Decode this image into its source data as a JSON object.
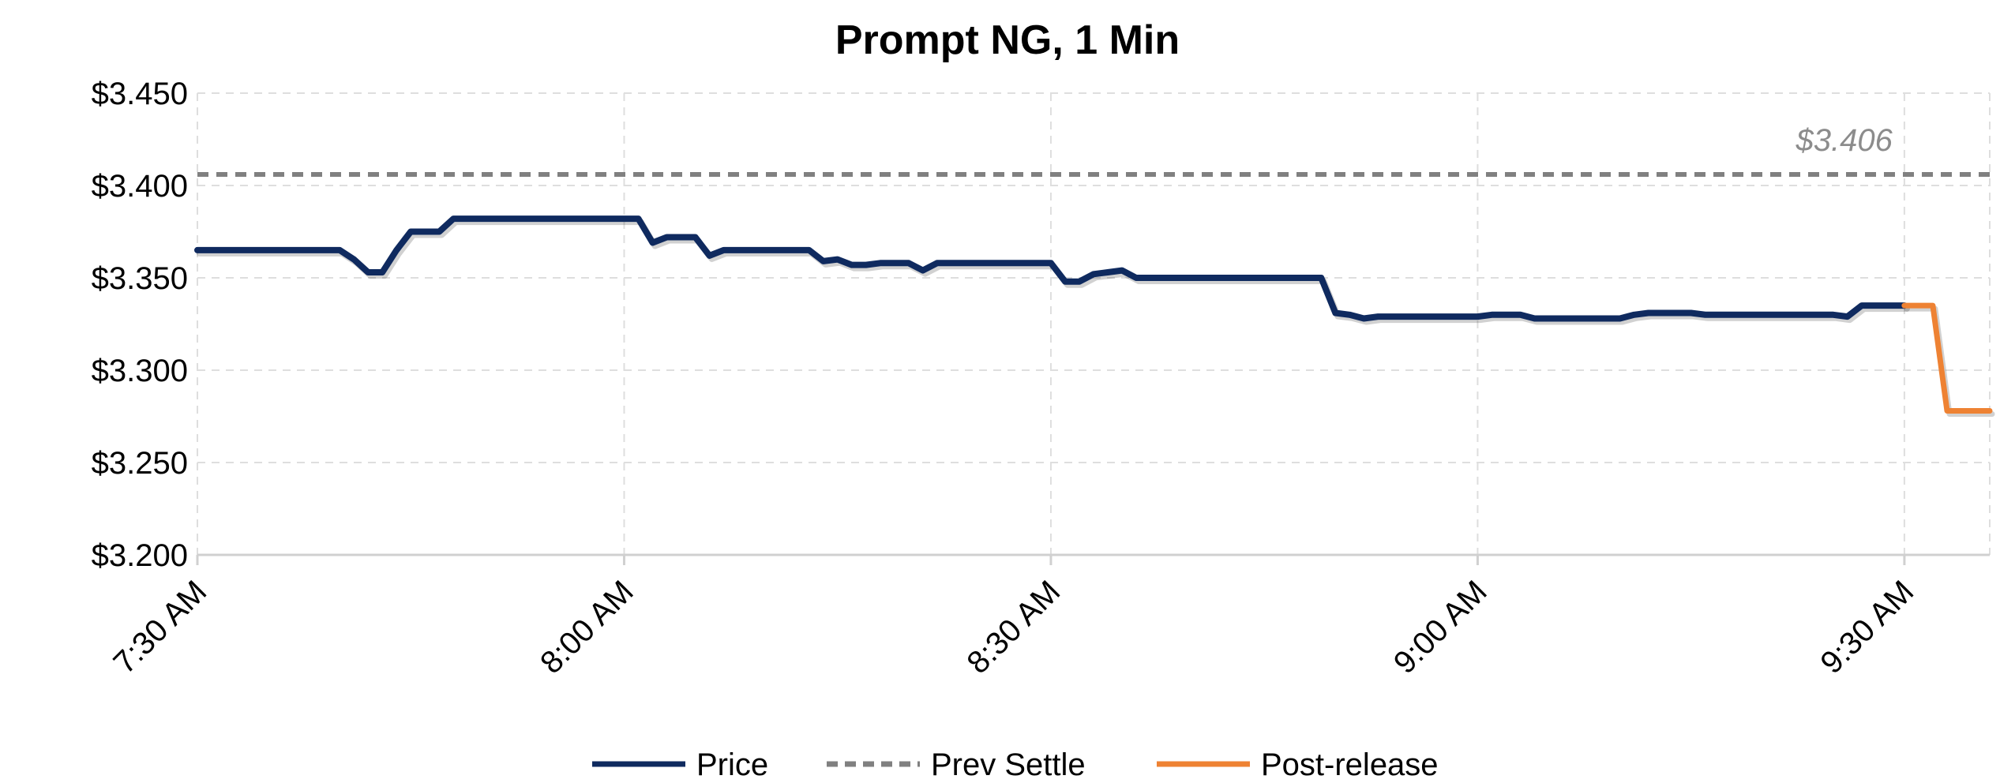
{
  "chart_data": {
    "type": "line",
    "title": "Prompt NG, 1 Min",
    "xlabel": "",
    "ylabel": "",
    "x_tick_labels": [
      "7:30 AM",
      "8:00 AM",
      "8:30 AM",
      "9:00 AM",
      "9:30 AM"
    ],
    "x_tick_minutes": [
      0,
      30,
      60,
      90,
      120
    ],
    "x_range_minutes": [
      0,
      126
    ],
    "y_tick_labels": [
      "$3.450",
      "$3.400",
      "$3.350",
      "$3.300",
      "$3.250",
      "$3.200"
    ],
    "y_tick_values": [
      3.45,
      3.4,
      3.35,
      3.3,
      3.25,
      3.2
    ],
    "ylim": [
      3.2,
      3.45
    ],
    "grid": true,
    "legend_position": "bottom",
    "series": [
      {
        "name": "Price",
        "color": "#0f2a5f",
        "style": "solid",
        "x_minutes": [
          0,
          10,
          11,
          12,
          13,
          14,
          15,
          16,
          17,
          18,
          19,
          20,
          31,
          32,
          33,
          34,
          35,
          36,
          37,
          38,
          39,
          40,
          41,
          42,
          43,
          44,
          45,
          46,
          47,
          48,
          49,
          50,
          51,
          52,
          53,
          54,
          55,
          56,
          57,
          58,
          59,
          60,
          61,
          62,
          63,
          64,
          65,
          66,
          79,
          80,
          81,
          82,
          83,
          84,
          85,
          86,
          87,
          88,
          89,
          90,
          91,
          92,
          93,
          94,
          95,
          96,
          97,
          98,
          99,
          100,
          101,
          102,
          103,
          104,
          105,
          106,
          107,
          108,
          109,
          110,
          111,
          112,
          113,
          114,
          115,
          116,
          117,
          118,
          119,
          120
        ],
        "values": [
          3.365,
          3.365,
          3.36,
          3.353,
          3.353,
          3.365,
          3.375,
          3.375,
          3.375,
          3.382,
          3.382,
          3.382,
          3.382,
          3.369,
          3.372,
          3.372,
          3.372,
          3.362,
          3.365,
          3.365,
          3.365,
          3.365,
          3.365,
          3.365,
          3.365,
          3.359,
          3.36,
          3.357,
          3.357,
          3.358,
          3.358,
          3.358,
          3.354,
          3.358,
          3.358,
          3.358,
          3.358,
          3.358,
          3.358,
          3.358,
          3.358,
          3.358,
          3.348,
          3.348,
          3.352,
          3.353,
          3.354,
          3.35,
          3.35,
          3.331,
          3.33,
          3.328,
          3.329,
          3.329,
          3.329,
          3.329,
          3.329,
          3.329,
          3.329,
          3.329,
          3.33,
          3.33,
          3.33,
          3.328,
          3.328,
          3.328,
          3.328,
          3.328,
          3.328,
          3.328,
          3.33,
          3.331,
          3.331,
          3.331,
          3.331,
          3.33,
          3.33,
          3.33,
          3.33,
          3.33,
          3.33,
          3.33,
          3.33,
          3.33,
          3.33,
          3.329,
          3.335,
          3.335,
          3.335,
          3.335
        ]
      },
      {
        "name": "Prev Settle",
        "color": "#808080",
        "style": "dashed",
        "x_minutes": [
          0,
          126
        ],
        "values": [
          3.406,
          3.406
        ]
      },
      {
        "name": "Post-release",
        "color": "#ee8233",
        "style": "solid",
        "x_minutes": [
          120,
          121,
          122,
          123,
          126
        ],
        "values": [
          3.335,
          3.335,
          3.335,
          3.278,
          3.278
        ]
      }
    ],
    "annotations": [
      {
        "text": "$3.406",
        "x_minutes": 120,
        "y": 3.406
      }
    ]
  }
}
